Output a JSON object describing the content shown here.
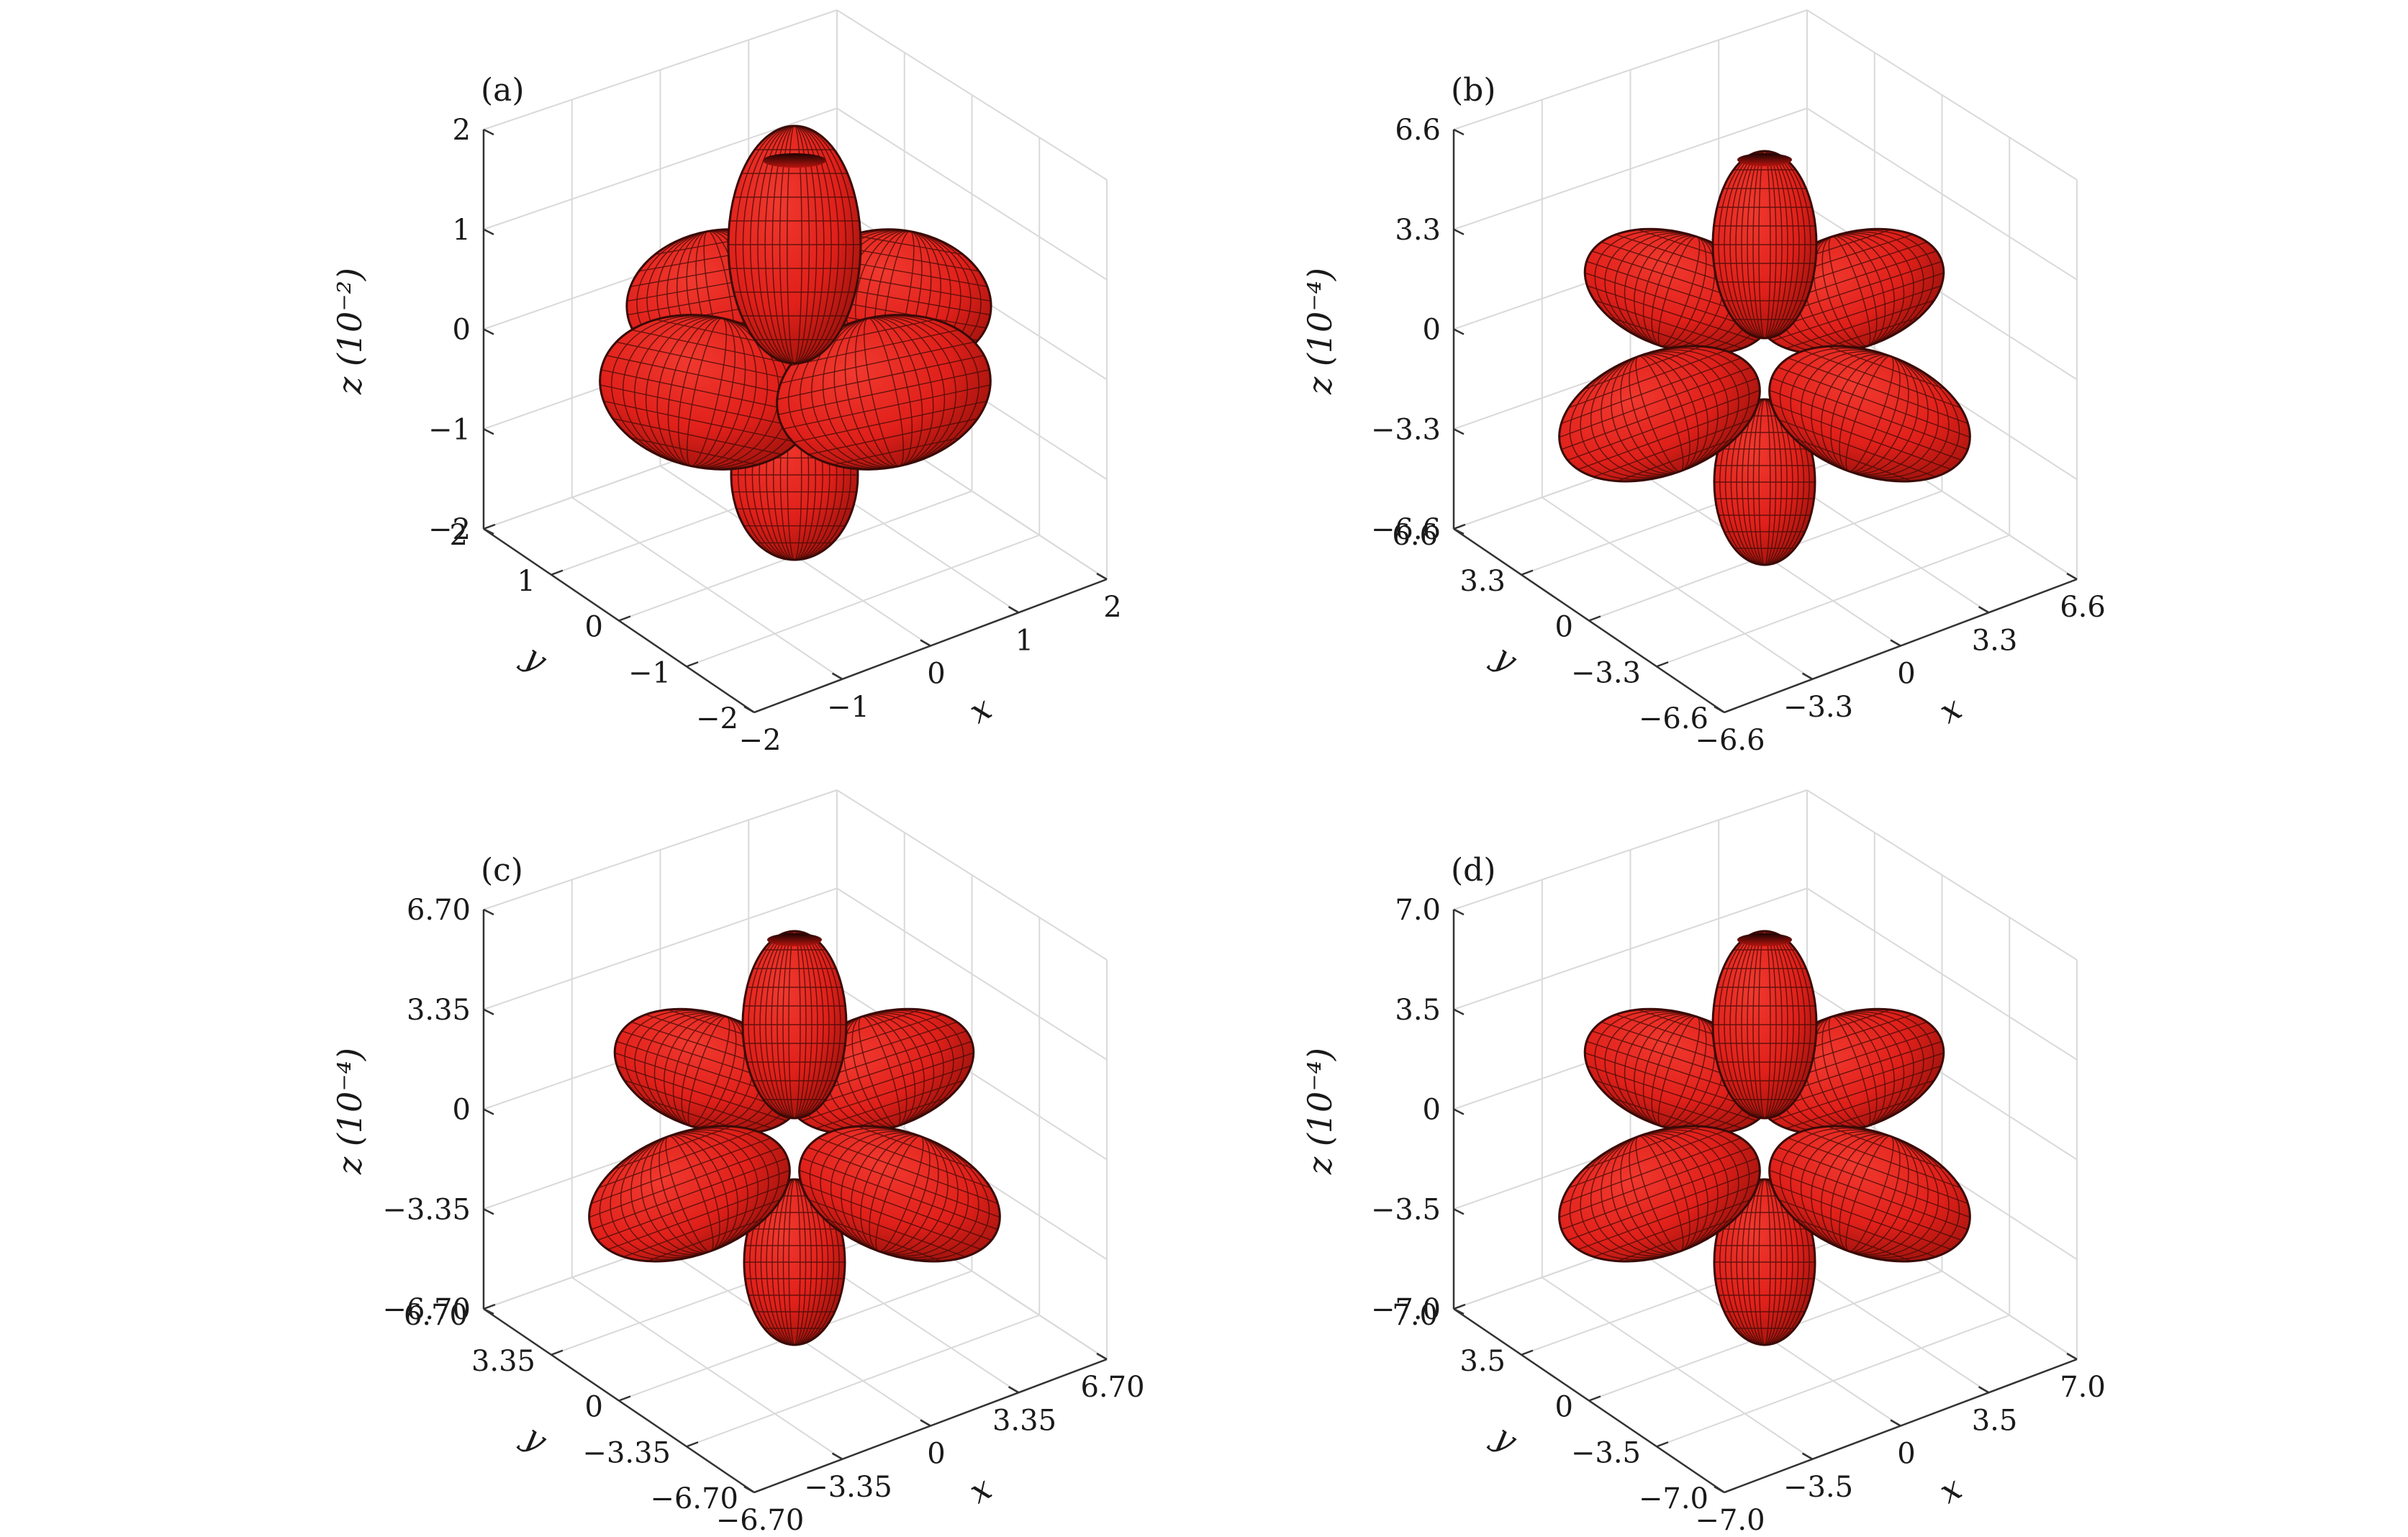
{
  "colors": {
    "surface": "#e0201a",
    "surface_shadow": "#8a0d08",
    "mesh": "#3a0a06",
    "grid": "#d9d9d9",
    "axis": "#333333"
  },
  "chart_data": [
    {
      "type": "3d-surface",
      "panel_label": "(a)",
      "xlabel": "x",
      "ylabel": "y",
      "zlabel": "z (10⁻²)",
      "x_ticks": [
        "−2",
        "−1",
        "0",
        "1",
        "2"
      ],
      "y_ticks": [
        "2",
        "1",
        "0",
        "−1",
        "−2"
      ],
      "z_ticks": [
        "2",
        "1",
        "0",
        "−1",
        "−2"
      ],
      "xlim": [
        -2,
        2
      ],
      "ylim": [
        -2,
        2
      ],
      "zlim": [
        -2,
        2
      ],
      "grid": true,
      "shape": "rounded"
    },
    {
      "type": "3d-surface",
      "panel_label": "(b)",
      "xlabel": "x",
      "ylabel": "y",
      "zlabel": "z (10⁻⁴)",
      "x_ticks": [
        "−6.6",
        "−3.3",
        "0",
        "3.3",
        "6.6"
      ],
      "y_ticks": [
        "6.6",
        "3.3",
        "0",
        "−3.3",
        "−6.6"
      ],
      "z_ticks": [
        "6.6",
        "3.3",
        "0",
        "−3.3",
        "−6.6"
      ],
      "xlim": [
        -6.6,
        6.6
      ],
      "ylim": [
        -6.6,
        6.6
      ],
      "zlim": [
        -6.6,
        6.6
      ],
      "grid": true,
      "shape": "lobed"
    },
    {
      "type": "3d-surface",
      "panel_label": "(c)",
      "xlabel": "x",
      "ylabel": "y",
      "zlabel": "z (10⁻⁴)",
      "x_ticks": [
        "−6.70",
        "−3.35",
        "0",
        "3.35",
        "6.70"
      ],
      "y_ticks": [
        "6.70",
        "3.35",
        "0",
        "−3.35",
        "−6.70"
      ],
      "z_ticks": [
        "6.70",
        "3.35",
        "0",
        "−3.35",
        "−6.70"
      ],
      "xlim": [
        -6.7,
        6.7
      ],
      "ylim": [
        -6.7,
        6.7
      ],
      "zlim": [
        -6.7,
        6.7
      ],
      "grid": true,
      "shape": "lobed"
    },
    {
      "type": "3d-surface",
      "panel_label": "(d)",
      "xlabel": "x",
      "ylabel": "y",
      "zlabel": "z (10⁻⁴)",
      "x_ticks": [
        "−7.0",
        "−3.5",
        "0",
        "3.5",
        "7.0"
      ],
      "y_ticks": [
        "7.0",
        "3.5",
        "0",
        "−3.5",
        "−7.0"
      ],
      "z_ticks": [
        "7.0",
        "3.5",
        "0",
        "−3.5",
        "−7.0"
      ],
      "xlim": [
        -7,
        7
      ],
      "ylim": [
        -7,
        7
      ],
      "zlim": [
        -7,
        7
      ],
      "grid": true,
      "shape": "lobed"
    }
  ]
}
